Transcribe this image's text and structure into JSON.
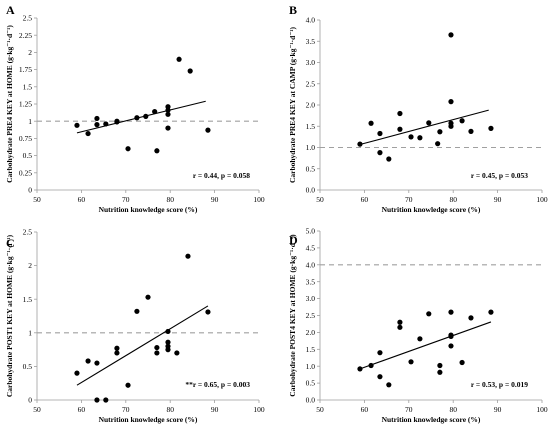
{
  "chart_data": [
    {
      "type": "scatter",
      "panel": "A",
      "xlabel": "Nutrition knowledge score (%)",
      "ylabel": "Carbohydrate PRE4 KEY at HOME (g·kg⁻¹·d⁻¹)",
      "xlim": [
        50,
        100
      ],
      "ylim": [
        0,
        2.5
      ],
      "xticks": [
        "50",
        "60",
        "70",
        "80",
        "90",
        "100"
      ],
      "yticks": [
        "0",
        "0.25",
        "0.5",
        "0.75",
        "1",
        "1.25",
        "1.5",
        "1.75",
        "2",
        "2.25",
        "2.5"
      ],
      "reference_line": 1,
      "trend": {
        "x": [
          59,
          88
        ],
        "y": [
          0.83,
          1.29
        ]
      },
      "stat": "r = 0.44, p = 0.058",
      "points": [
        {
          "x": 59,
          "y": 0.94
        },
        {
          "x": 61.5,
          "y": 0.82
        },
        {
          "x": 63.5,
          "y": 0.95
        },
        {
          "x": 63.5,
          "y": 1.04
        },
        {
          "x": 65.5,
          "y": 0.96
        },
        {
          "x": 68,
          "y": 0.99
        },
        {
          "x": 68,
          "y": 1.0
        },
        {
          "x": 70.5,
          "y": 0.6
        },
        {
          "x": 72.5,
          "y": 1.05
        },
        {
          "x": 74.5,
          "y": 1.07
        },
        {
          "x": 76.5,
          "y": 1.14
        },
        {
          "x": 77,
          "y": 0.57
        },
        {
          "x": 79.5,
          "y": 0.9
        },
        {
          "x": 79.5,
          "y": 1.1
        },
        {
          "x": 79.5,
          "y": 1.16
        },
        {
          "x": 79.5,
          "y": 1.21
        },
        {
          "x": 82,
          "y": 1.9
        },
        {
          "x": 84.5,
          "y": 1.73
        },
        {
          "x": 88.5,
          "y": 0.87
        }
      ]
    },
    {
      "type": "scatter",
      "panel": "B",
      "xlabel": "Nutrition knowledge score (%)",
      "ylabel": "Carbohydrate PRE4 KEY at CAMP (g·kg⁻¹·d⁻¹)",
      "xlim": [
        50,
        100
      ],
      "ylim": [
        0,
        4.0
      ],
      "xticks": [
        "50",
        "60",
        "70",
        "80",
        "90",
        "100"
      ],
      "yticks": [
        "0.0",
        "0.5",
        "1.0",
        "1.5",
        "2.0",
        "2.5",
        "3.0",
        "3.5",
        "4.0"
      ],
      "reference_line": 1,
      "trend": {
        "x": [
          59,
          88
        ],
        "y": [
          1.07,
          1.88
        ]
      },
      "stat": "r = 0.45, p = 0.053",
      "points": [
        {
          "x": 59,
          "y": 1.08
        },
        {
          "x": 61.5,
          "y": 1.57
        },
        {
          "x": 63.5,
          "y": 0.88
        },
        {
          "x": 63.5,
          "y": 1.33
        },
        {
          "x": 65.5,
          "y": 0.73
        },
        {
          "x": 68,
          "y": 1.43
        },
        {
          "x": 68,
          "y": 1.8
        },
        {
          "x": 70.5,
          "y": 1.25
        },
        {
          "x": 72.5,
          "y": 1.23
        },
        {
          "x": 74.5,
          "y": 1.58
        },
        {
          "x": 76.5,
          "y": 1.09
        },
        {
          "x": 77,
          "y": 1.37
        },
        {
          "x": 79.5,
          "y": 1.5
        },
        {
          "x": 79.5,
          "y": 1.57
        },
        {
          "x": 79.5,
          "y": 2.08
        },
        {
          "x": 79.5,
          "y": 3.65
        },
        {
          "x": 82,
          "y": 1.63
        },
        {
          "x": 84,
          "y": 1.38
        },
        {
          "x": 88.5,
          "y": 1.45
        }
      ]
    },
    {
      "type": "scatter",
      "panel": "C",
      "xlabel": "Nutrition knowledge score (%)",
      "ylabel": "Carbohydrate POST1 KEY at HOME (g·kg⁻¹·d⁻¹)",
      "xlim": [
        50,
        100
      ],
      "ylim": [
        0,
        2.5
      ],
      "xticks": [
        "50",
        "60",
        "70",
        "80",
        "90",
        "100"
      ],
      "yticks": [
        "0",
        "0.5",
        "1",
        "1.5",
        "2",
        "2.5"
      ],
      "reference_line": 1,
      "trend": {
        "x": [
          59,
          88.5
        ],
        "y": [
          0.22,
          1.4
        ]
      },
      "stat": "**r = 0.65, p = 0.003",
      "points": [
        {
          "x": 59,
          "y": 0.4
        },
        {
          "x": 61.5,
          "y": 0.58
        },
        {
          "x": 63.5,
          "y": 0.0
        },
        {
          "x": 63.5,
          "y": 0.55
        },
        {
          "x": 65.5,
          "y": 0.0
        },
        {
          "x": 68,
          "y": 0.7
        },
        {
          "x": 68,
          "y": 0.77
        },
        {
          "x": 70.5,
          "y": 0.22
        },
        {
          "x": 72.5,
          "y": 1.32
        },
        {
          "x": 75,
          "y": 1.53
        },
        {
          "x": 77,
          "y": 0.7
        },
        {
          "x": 77,
          "y": 0.78
        },
        {
          "x": 79.5,
          "y": 0.8
        },
        {
          "x": 79.5,
          "y": 0.86
        },
        {
          "x": 79.5,
          "y": 1.02
        },
        {
          "x": 79.5,
          "y": 0.75
        },
        {
          "x": 81.5,
          "y": 0.7
        },
        {
          "x": 84,
          "y": 2.14
        },
        {
          "x": 88.5,
          "y": 1.31
        }
      ]
    },
    {
      "type": "scatter",
      "panel": "D",
      "xlabel": "Nutrition knowledge score (%)",
      "ylabel": "Carbohydrate POST4 KEY at HOME (g·kg⁻¹·d⁻¹)",
      "xlim": [
        50,
        100
      ],
      "ylim": [
        0,
        5.0
      ],
      "xticks": [
        "50",
        "60",
        "70",
        "80",
        "90",
        "100"
      ],
      "yticks": [
        "0.0",
        "0.5",
        "1.0",
        "1.5",
        "2.0",
        "2.5",
        "3.0",
        "3.5",
        "4.0",
        "4.5",
        "5.0"
      ],
      "reference_line": 4,
      "trend": {
        "x": [
          59,
          88.5
        ],
        "y": [
          0.92,
          2.31
        ]
      },
      "stat": "r = 0.53, p = 0.019",
      "points": [
        {
          "x": 59,
          "y": 0.92
        },
        {
          "x": 61.5,
          "y": 1.02
        },
        {
          "x": 63.5,
          "y": 0.69
        },
        {
          "x": 63.5,
          "y": 1.4
        },
        {
          "x": 65.5,
          "y": 0.45
        },
        {
          "x": 68,
          "y": 2.15
        },
        {
          "x": 68,
          "y": 2.3
        },
        {
          "x": 70.5,
          "y": 1.13
        },
        {
          "x": 72.5,
          "y": 1.81
        },
        {
          "x": 74.5,
          "y": 2.55
        },
        {
          "x": 77,
          "y": 0.82
        },
        {
          "x": 77,
          "y": 1.02
        },
        {
          "x": 79.5,
          "y": 1.6
        },
        {
          "x": 79.5,
          "y": 1.88
        },
        {
          "x": 79.5,
          "y": 1.92
        },
        {
          "x": 79.5,
          "y": 2.6
        },
        {
          "x": 82,
          "y": 1.11
        },
        {
          "x": 84,
          "y": 2.43
        },
        {
          "x": 88.5,
          "y": 2.6
        }
      ]
    }
  ]
}
